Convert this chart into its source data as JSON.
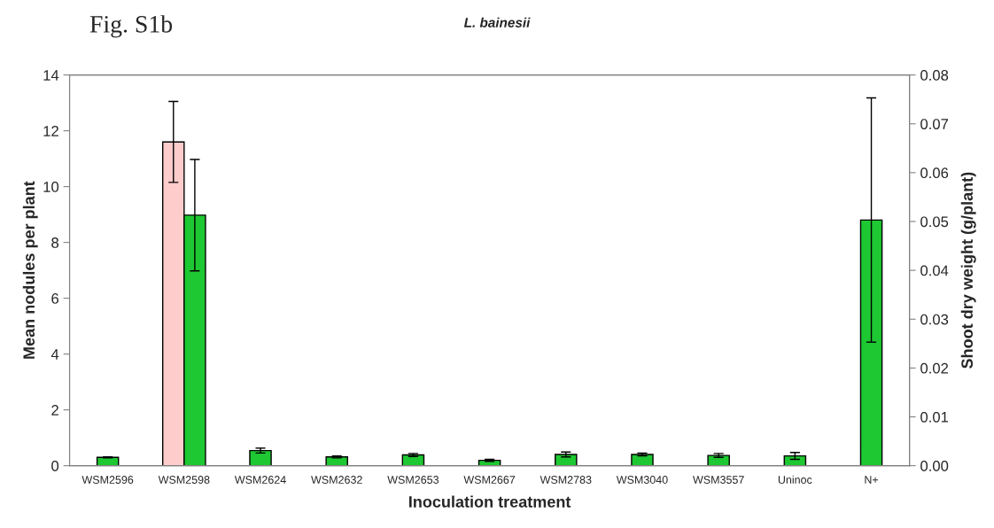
{
  "chart_data": {
    "type": "bar",
    "title": "L. bainesii",
    "xlabel": "Inoculation treatment",
    "ylabel": "Mean nodules per plant",
    "y2label": "Shoot dry weight (g/plant)",
    "annotations": [
      "Fig. S1b"
    ],
    "categories": [
      "WSM2596",
      "WSM2598",
      "WSM2624",
      "WSM2632",
      "WSM2653",
      "WSM2667",
      "WSM2783",
      "WSM3040",
      "WSM3557",
      "Uninoc",
      "N+"
    ],
    "series": [
      {
        "color": "#ffcccc",
        "values": [
          null,
          11.6,
          null,
          null,
          null,
          null,
          null,
          null,
          null,
          null,
          null
        ],
        "errors": [
          null,
          1.45,
          null,
          null,
          null,
          null,
          null,
          null,
          null,
          null,
          null
        ]
      },
      {
        "color": "#1ec832",
        "axis": "y2",
        "values": [
          0.0017,
          0.0513,
          0.0031,
          0.0018,
          0.0022,
          0.0011,
          0.0023,
          0.0023,
          0.0021,
          0.002,
          0.0503
        ],
        "errors": [
          0.0001,
          0.0114,
          0.0005,
          0.0002,
          0.0003,
          0.0002,
          0.0005,
          0.0003,
          0.0004,
          0.0007,
          0.025
        ]
      }
    ],
    "ylim": [
      0,
      14
    ],
    "yticks": [
      0,
      2,
      4,
      6,
      8,
      10,
      12,
      14
    ],
    "y2lim": [
      0,
      0.08
    ],
    "y2ticks": [
      {
        "value": 0,
        "label": "0.00"
      },
      {
        "value": 0.01,
        "label": "0.01"
      },
      {
        "value": 0.02,
        "label": "0.02"
      },
      {
        "value": 0.03,
        "label": "0.03"
      },
      {
        "value": 0.04,
        "label": "0.04"
      },
      {
        "value": 0.05,
        "label": "0.05"
      },
      {
        "value": 0.06,
        "label": "0.06"
      },
      {
        "value": 0.07,
        "label": "0.07"
      },
      {
        "value": 0.08,
        "label": "0.08"
      }
    ],
    "grid": false,
    "legend": false
  }
}
